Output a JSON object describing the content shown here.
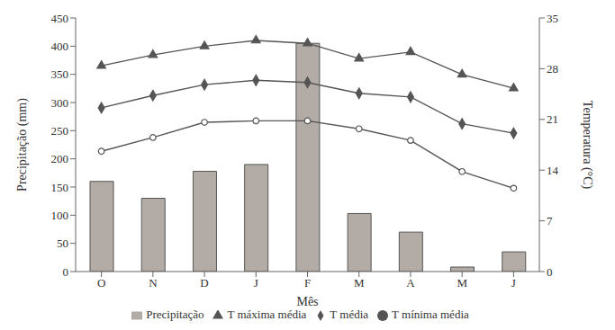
{
  "chart_data": {
    "type": "bar",
    "categories": [
      "O",
      "N",
      "D",
      "J",
      "F",
      "M",
      "A",
      "M",
      "J"
    ],
    "x_label": "Mês",
    "y_label": "Precipitação (mm)",
    "y2_label": "Temperatura (°C)",
    "ylim": [
      0,
      450
    ],
    "yticks": [
      0,
      50,
      100,
      150,
      200,
      250,
      300,
      350,
      400,
      450
    ],
    "y2lim": [
      0,
      35
    ],
    "y2ticks": [
      0,
      7,
      14,
      21,
      28,
      35
    ],
    "grid": false,
    "legend": "bottom",
    "series": [
      {
        "name": "Precipitação",
        "type": "bar",
        "color": "#b3aca6",
        "values": [
          160,
          130,
          178,
          190,
          405,
          103,
          70,
          8,
          35
        ]
      },
      {
        "name": "T média",
        "type": "line",
        "axis": "y2",
        "color": "#555555",
        "marker": "diamond",
        "line_style": "solid",
        "values": [
          22.6,
          24.3,
          25.8,
          26.4,
          26.1,
          24.6,
          24.1,
          20.4,
          19.1
        ]
      },
      {
        "name": "T máxima média",
        "type": "line",
        "axis": "y2",
        "color": "#555555",
        "marker": "triangle",
        "line_style": "solid",
        "values": [
          28.4,
          29.9,
          31.1,
          31.9,
          31.5,
          29.4,
          30.3,
          27.2,
          25.3
        ]
      },
      {
        "name": "T mínima média",
        "type": "line",
        "axis": "y2",
        "color": "#555555",
        "marker": "circle",
        "line_style": "solid",
        "values": [
          16.6,
          18.5,
          20.6,
          20.8,
          20.8,
          19.7,
          18.1,
          13.8,
          11.5
        ]
      }
    ]
  }
}
